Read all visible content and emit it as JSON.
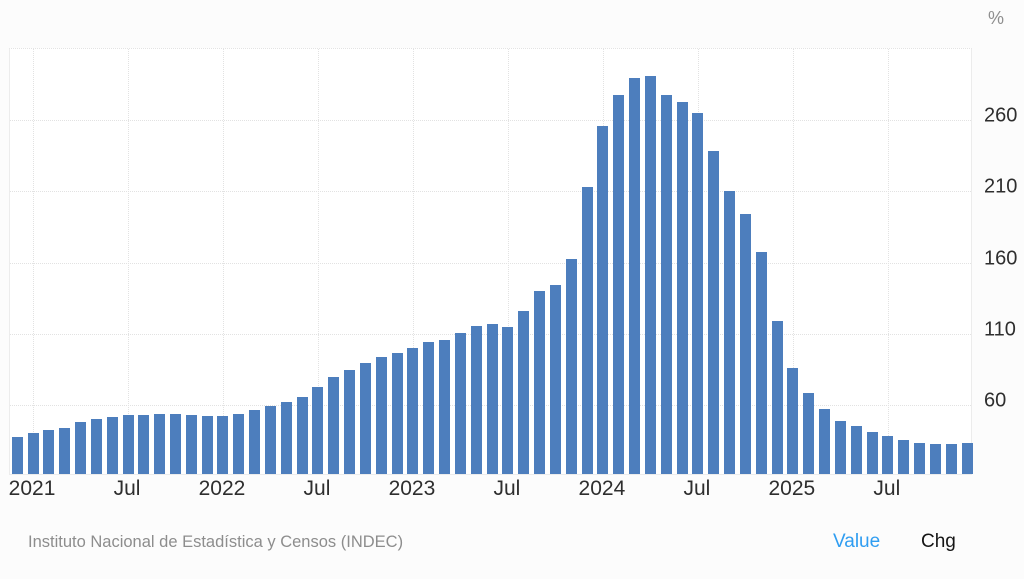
{
  "page": {
    "unit_label": "%",
    "source": "Instituto Nacional de Estadística y Censos (INDEC)",
    "tabs": [
      {
        "label": "Value",
        "active": true,
        "color": "#2f9df1"
      },
      {
        "label": "Chg",
        "active": false,
        "color": "#151515"
      }
    ]
  },
  "chart_data": {
    "type": "bar",
    "unit": "%",
    "bar_color": "#4d7ebd",
    "grid": "dotted",
    "legend": "none",
    "ylim": [
      10,
      310
    ],
    "yticks": [
      60,
      110,
      160,
      210,
      260
    ],
    "x_tick_labels": [
      {
        "index": 1,
        "label": "2021"
      },
      {
        "index": 7,
        "label": "Jul"
      },
      {
        "index": 13,
        "label": "2022"
      },
      {
        "index": 19,
        "label": "Jul"
      },
      {
        "index": 25,
        "label": "2023"
      },
      {
        "index": 31,
        "label": "Jul"
      },
      {
        "index": 37,
        "label": "2024"
      },
      {
        "index": 43,
        "label": "Jul"
      },
      {
        "index": 49,
        "label": "2025"
      },
      {
        "index": 55,
        "label": "Jul"
      }
    ],
    "months": [
      "2020-12",
      "2021-01",
      "2021-02",
      "2021-03",
      "2021-04",
      "2021-05",
      "2021-06",
      "2021-07",
      "2021-08",
      "2021-09",
      "2021-10",
      "2021-11",
      "2021-12",
      "2022-01",
      "2022-02",
      "2022-03",
      "2022-04",
      "2022-05",
      "2022-06",
      "2022-07",
      "2022-08",
      "2022-09",
      "2022-10",
      "2022-11",
      "2022-12",
      "2023-01",
      "2023-02",
      "2023-03",
      "2023-04",
      "2023-05",
      "2023-06",
      "2023-07",
      "2023-08",
      "2023-09",
      "2023-10",
      "2023-11",
      "2023-12",
      "2024-01",
      "2024-02",
      "2024-03",
      "2024-04",
      "2024-05",
      "2024-06",
      "2024-07",
      "2024-08",
      "2024-09",
      "2024-10",
      "2024-11",
      "2024-12",
      "2025-01",
      "2025-02",
      "2025-03",
      "2025-04",
      "2025-05",
      "2025-06",
      "2025-07",
      "2025-08",
      "2025-09",
      "2025-10",
      "2025-11",
      "2025-12"
    ],
    "values": [
      36.1,
      38.5,
      40.7,
      42.6,
      46.3,
      48.8,
      50.2,
      51.8,
      51.4,
      52.5,
      52.1,
      51.2,
      50.9,
      50.7,
      52.3,
      55.1,
      58.0,
      60.7,
      64.0,
      71.0,
      78.5,
      83.0,
      88.0,
      92.4,
      94.8,
      98.8,
      102.5,
      104.3,
      108.8,
      114.2,
      115.6,
      113.4,
      124.4,
      138.3,
      142.7,
      160.9,
      211.4,
      254.2,
      276.2,
      287.9,
      289.4,
      276.4,
      271.5,
      263.4,
      236.7,
      209.0,
      193.0,
      166.0,
      117.8,
      84.5,
      66.9,
      55.9,
      47.3,
      43.5,
      39.4,
      36.6,
      33.6,
      31.8,
      31.3,
      31.4,
      31.8
    ]
  }
}
